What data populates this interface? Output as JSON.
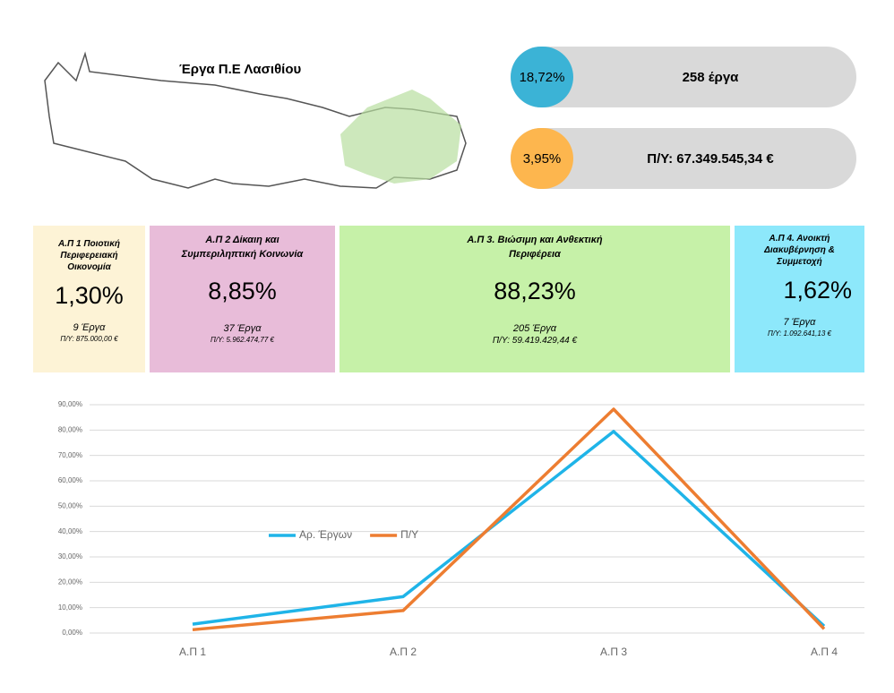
{
  "header": {
    "title": "Έργα Π.Ε Λασιθίου"
  },
  "summary": [
    {
      "percent": "18,72%",
      "text": "258 έργα"
    },
    {
      "percent": "3,95%",
      "text": "Π/Υ: 67.349.545,34 €"
    }
  ],
  "cards": [
    {
      "title": "Α.Π 1 Ποιοτική Περιφερειακή Οικονομία",
      "percent": "1,30%",
      "count": "9 Έργα",
      "budget": "Π/Υ: 875.000,00 €"
    },
    {
      "title": "Α.Π 2 Δίκαιη και Συμπεριληπτική Κοινωνία",
      "percent": "8,85%",
      "count": "37 Έργα",
      "budget": "Π/Υ: 5.962.474,77 €"
    },
    {
      "title": "Α.Π 3. Βιώσιμη και Ανθεκτική Περιφέρεια",
      "percent": "88,23%",
      "count": "205 Έργα",
      "budget": "Π/Υ: 59.419.429,44 €"
    },
    {
      "title": "Α.Π 4. Ανοικτή Διακυβέρνηση & Συμμετοχή",
      "percent": "1,62%",
      "count": "7 Έργα",
      "budget": "Π/Υ: 1.092.641,13 €"
    }
  ],
  "chart_data": {
    "type": "line",
    "categories": [
      "Α.Π 1",
      "Α.Π 2",
      "Α.Π 3",
      "Α.Π 4"
    ],
    "series": [
      {
        "name": "Αρ. Έργων",
        "color": "#1fb4e8",
        "values": [
          3.49,
          14.34,
          79.46,
          2.71
        ]
      },
      {
        "name": "Π/Υ",
        "color": "#ed7d31",
        "values": [
          1.3,
          8.85,
          88.23,
          1.62
        ]
      }
    ],
    "ylim": [
      0,
      90
    ],
    "yticks": [
      {
        "value": 0,
        "label": "0,00%"
      },
      {
        "value": 10,
        "label": "10,00%"
      },
      {
        "value": 20,
        "label": "20,00%"
      },
      {
        "value": 30,
        "label": "30,00%"
      },
      {
        "value": 40,
        "label": "40,00%"
      },
      {
        "value": 50,
        "label": "50,00%"
      },
      {
        "value": 60,
        "label": "60,00%"
      },
      {
        "value": 70,
        "label": "70,00%"
      },
      {
        "value": 80,
        "label": "80,00%"
      },
      {
        "value": 90,
        "label": "90,00%"
      }
    ],
    "grid": true,
    "legend": "center-left"
  }
}
